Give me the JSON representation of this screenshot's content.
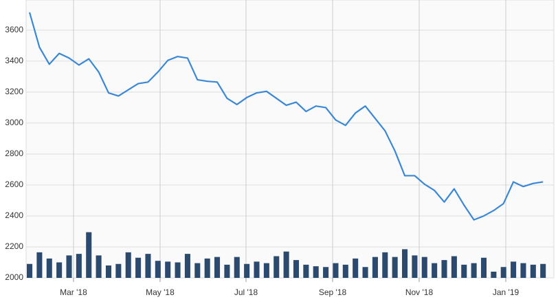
{
  "chart_data": {
    "type": "line",
    "x": [
      0,
      1,
      2,
      3,
      4,
      5,
      6,
      7,
      8,
      9,
      10,
      11,
      12,
      13,
      14,
      15,
      16,
      17,
      18,
      19,
      20,
      21,
      22,
      23,
      24,
      25,
      26,
      27,
      28,
      29,
      30,
      31,
      32,
      33,
      34,
      35,
      36,
      37,
      38,
      39,
      40,
      41,
      42,
      43,
      44,
      45,
      46,
      47,
      48,
      49,
      50,
      51,
      52
    ],
    "series": [
      {
        "type": "line",
        "color": "#3a87d6",
        "values": [
          3715,
          3490,
          3380,
          3450,
          3420,
          3375,
          3415,
          3330,
          3195,
          3175,
          3215,
          3255,
          3265,
          3330,
          3405,
          3430,
          3420,
          3280,
          3270,
          3265,
          3160,
          3120,
          3165,
          3195,
          3205,
          3160,
          3115,
          3135,
          3075,
          3110,
          3100,
          3020,
          2985,
          3065,
          3110,
          3030,
          2950,
          2820,
          2660,
          2660,
          2605,
          2565,
          2490,
          2575,
          2470,
          2375,
          2400,
          2435,
          2480,
          2620,
          2590,
          2610,
          2620
        ]
      },
      {
        "type": "bar",
        "color": "#2c4a6e",
        "values": [
          2090,
          2165,
          2125,
          2100,
          2145,
          2155,
          2295,
          2145,
          2080,
          2090,
          2165,
          2130,
          2155,
          2110,
          2105,
          2100,
          2155,
          2095,
          2125,
          2135,
          2085,
          2135,
          2090,
          2105,
          2095,
          2140,
          2170,
          2115,
          2085,
          2075,
          2070,
          2095,
          2085,
          2125,
          2070,
          2135,
          2165,
          2135,
          2185,
          2145,
          2135,
          2095,
          2115,
          2140,
          2085,
          2095,
          2130,
          2040,
          2070,
          2105,
          2095,
          2085,
          2090
        ]
      }
    ],
    "xlim": [
      -0.35,
      53.1
    ],
    "xticks": [
      {
        "value": 4.45,
        "label": "Mar '18"
      },
      {
        "value": 13.22,
        "label": "May '18"
      },
      {
        "value": 21.92,
        "label": "Jul '18"
      },
      {
        "value": 30.69,
        "label": "Sep '18"
      },
      {
        "value": 39.46,
        "label": "Nov '18"
      },
      {
        "value": 48.23,
        "label": "Jan '19"
      }
    ],
    "ylim": [
      2000,
      3795
    ],
    "yticks": [
      2000,
      2200,
      2400,
      2600,
      2800,
      3000,
      3200,
      3400,
      3600
    ],
    "grid": true
  }
}
